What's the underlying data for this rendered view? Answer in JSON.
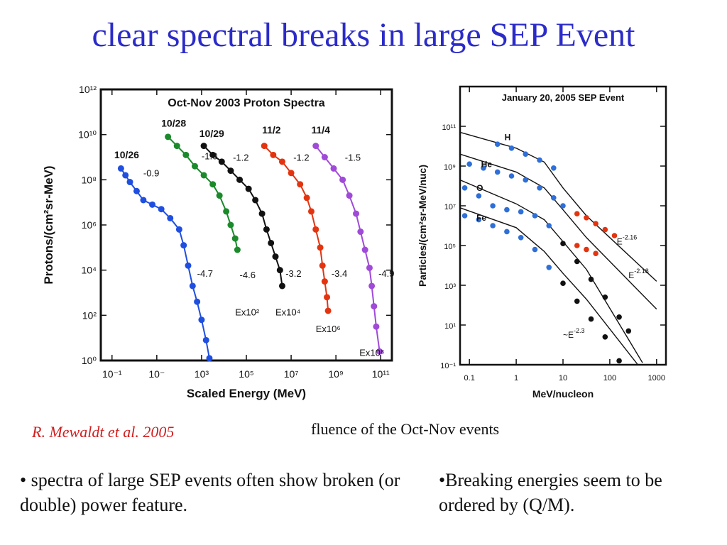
{
  "slide": {
    "title": "clear spectral breaks in large SEP Event",
    "citation": "R. Mewaldt et al. 2005",
    "figure_caption": "fluence of the Oct-Nov events",
    "bullets": [
      "• spectra of large SEP events often show broken (or double) power feature.",
      "•Breaking energies seem to be ordered by (Q/M)."
    ]
  },
  "chart_data": [
    {
      "type": "scatter",
      "title": "Oct-Nov 2003 Proton Spectra",
      "xlabel": "Scaled Energy (MeV)",
      "ylabel": "Protons/(cm²sr-MeV)",
      "x_scale": "log",
      "y_scale": "log",
      "xlim_exp": [
        -1.5,
        11.5
      ],
      "ylim_exp": [
        0,
        12
      ],
      "x_ticks": [
        {
          "e": -1,
          "label": "10⁻¹"
        },
        {
          "e": 1,
          "label": "10⁻"
        },
        {
          "e": 3,
          "label": "10³"
        },
        {
          "e": 5,
          "label": "10⁵"
        },
        {
          "e": 7,
          "label": "10⁷"
        },
        {
          "e": 9,
          "label": "10⁹"
        },
        {
          "e": 11,
          "label": "10¹¹"
        }
      ],
      "y_ticks": [
        {
          "e": 0,
          "label": "10⁰"
        },
        {
          "e": 2,
          "label": "10²"
        },
        {
          "e": 4,
          "label": "10⁴"
        },
        {
          "e": 6,
          "label": "10⁶"
        },
        {
          "e": 8,
          "label": "10⁸"
        },
        {
          "e": 10,
          "label": "10¹⁰"
        },
        {
          "e": 12,
          "label": "10¹²"
        }
      ],
      "series": [
        {
          "name": "10/26",
          "color": "#1f4fe0",
          "points": [
            [
              -0.6,
              8.5
            ],
            [
              -0.4,
              8.2
            ],
            [
              -0.2,
              7.9
            ],
            [
              0.1,
              7.5
            ],
            [
              0.4,
              7.1
            ],
            [
              0.8,
              6.9
            ],
            [
              1.2,
              6.7
            ],
            [
              1.6,
              6.3
            ],
            [
              2.0,
              5.8
            ],
            [
              2.2,
              5.1
            ],
            [
              2.4,
              4.2
            ],
            [
              2.6,
              3.3
            ],
            [
              2.8,
              2.6
            ],
            [
              3.0,
              1.8
            ],
            [
              3.2,
              0.9
            ],
            [
              3.35,
              0.1
            ]
          ],
          "annotations": [
            {
              "text": "-0.9",
              "x": 0.4,
              "y": 8.15
            },
            {
              "text": "-4.7",
              "x": 2.8,
              "y": 3.7
            }
          ]
        },
        {
          "name": "10/28",
          "color": "#1a8a2a",
          "points": [
            [
              1.5,
              9.9
            ],
            [
              1.9,
              9.5
            ],
            [
              2.3,
              9.1
            ],
            [
              2.7,
              8.6
            ],
            [
              3.1,
              8.2
            ],
            [
              3.5,
              7.8
            ],
            [
              3.8,
              7.3
            ],
            [
              4.1,
              6.6
            ],
            [
              4.3,
              6.0
            ],
            [
              4.5,
              5.4
            ],
            [
              4.6,
              4.9
            ]
          ],
          "annotations": [
            {
              "text": "-1.0",
              "x": 3.0,
              "y": 8.9
            },
            {
              "text": "-4.6",
              "x": 4.7,
              "y": 3.65
            },
            {
              "text": "Ex10²",
              "x": 4.5,
              "y": 2.0
            }
          ]
        },
        {
          "name": "10/29",
          "color": "#111111",
          "points": [
            [
              3.1,
              9.5
            ],
            [
              3.5,
              9.1
            ],
            [
              3.9,
              8.8
            ],
            [
              4.3,
              8.4
            ],
            [
              4.7,
              8.0
            ],
            [
              5.1,
              7.6
            ],
            [
              5.4,
              7.1
            ],
            [
              5.7,
              6.5
            ],
            [
              5.9,
              5.8
            ],
            [
              6.1,
              5.2
            ],
            [
              6.3,
              4.6
            ],
            [
              6.5,
              4.0
            ],
            [
              6.6,
              3.3
            ]
          ],
          "annotations": [
            {
              "text": "-1.2",
              "x": 4.4,
              "y": 8.85
            },
            {
              "text": "-3.2",
              "x": 6.75,
              "y": 3.7
            },
            {
              "text": "Ex10⁴",
              "x": 6.3,
              "y": 2.0
            }
          ]
        },
        {
          "name": "11/2",
          "color": "#e33410",
          "points": [
            [
              5.8,
              9.5
            ],
            [
              6.2,
              9.1
            ],
            [
              6.6,
              8.8
            ],
            [
              7.0,
              8.3
            ],
            [
              7.4,
              7.8
            ],
            [
              7.7,
              7.2
            ],
            [
              7.9,
              6.6
            ],
            [
              8.1,
              5.8
            ],
            [
              8.3,
              5.0
            ],
            [
              8.4,
              4.2
            ],
            [
              8.5,
              3.5
            ],
            [
              8.6,
              2.8
            ],
            [
              8.65,
              2.2
            ]
          ],
          "annotations": [
            {
              "text": "-1.2",
              "x": 7.1,
              "y": 8.85
            },
            {
              "text": "-3.4",
              "x": 8.8,
              "y": 3.7
            },
            {
              "text": "Ex10⁶",
              "x": 8.1,
              "y": 1.25
            }
          ]
        },
        {
          "name": "11/4",
          "color": "#a04ad8",
          "points": [
            [
              8.1,
              9.5
            ],
            [
              8.5,
              9.0
            ],
            [
              8.9,
              8.5
            ],
            [
              9.3,
              8.0
            ],
            [
              9.6,
              7.3
            ],
            [
              9.9,
              6.5
            ],
            [
              10.1,
              5.7
            ],
            [
              10.3,
              4.9
            ],
            [
              10.5,
              4.1
            ],
            [
              10.6,
              3.3
            ],
            [
              10.7,
              2.4
            ],
            [
              10.8,
              1.5
            ],
            [
              10.95,
              0.4
            ]
          ],
          "annotations": [
            {
              "text": "-1.5",
              "x": 9.4,
              "y": 8.85
            },
            {
              "text": "-4.9",
              "x": 10.9,
              "y": 3.7
            },
            {
              "text": "Ex10⁸",
              "x": 10.05,
              "y": 0.2
            }
          ]
        }
      ],
      "series_label_positions": [
        {
          "x": -0.9,
          "y": 8.95
        },
        {
          "x": 1.2,
          "y": 10.35
        },
        {
          "x": 2.9,
          "y": 9.9
        },
        {
          "x": 5.7,
          "y": 10.05
        },
        {
          "x": 7.9,
          "y": 10.05
        }
      ]
    },
    {
      "type": "scatter",
      "title": "January 20, 2005 SEP Event",
      "xlabel": "MeV/nucleon",
      "ylabel": "Particles/(cm²sr-MeV/nuc)",
      "x_scale": "log",
      "y_scale": "log",
      "xlim_exp": [
        -1.2,
        3.2
      ],
      "ylim_exp": [
        -3,
        11
      ],
      "x_ticks": [
        {
          "e": -1,
          "label": "0.1"
        },
        {
          "e": 0,
          "label": "1"
        },
        {
          "e": 1,
          "label": "10"
        },
        {
          "e": 2,
          "label": "100"
        },
        {
          "e": 3,
          "label": "1000"
        }
      ],
      "y_ticks": [
        {
          "e": -3,
          "label": "10⁻¹"
        },
        {
          "e": -1,
          "label": "10¹"
        },
        {
          "e": 1,
          "label": "10³"
        },
        {
          "e": 3,
          "label": "10⁵"
        },
        {
          "e": 5,
          "label": "10⁷"
        },
        {
          "e": 7,
          "label": "10⁹"
        },
        {
          "e": 9,
          "label": "10¹¹"
        }
      ],
      "series": [
        {
          "name": "H",
          "color": "#2e6fd8",
          "points": [
            [
              -0.4,
              8.1
            ],
            [
              -0.1,
              7.9
            ],
            [
              0.2,
              7.6
            ],
            [
              0.5,
              7.3
            ],
            [
              0.8,
              6.9
            ],
            [
              1.3,
              4.6
            ],
            [
              1.5,
              4.4
            ],
            [
              1.7,
              4.1
            ],
            [
              1.9,
              3.8
            ],
            [
              2.1,
              3.5
            ]
          ],
          "points_colors": [
            "#2e6fd8",
            "#2e6fd8",
            "#2e6fd8",
            "#2e6fd8",
            "#2e6fd8",
            "#e33410",
            "#e33410",
            "#e33410",
            "#e33410",
            "#e33410"
          ]
        },
        {
          "name": "He",
          "color": "#2e6fd8",
          "points": [
            [
              -1.0,
              7.1
            ],
            [
              -0.7,
              6.9
            ],
            [
              -0.4,
              6.7
            ],
            [
              -0.1,
              6.5
            ],
            [
              0.2,
              6.3
            ],
            [
              0.5,
              5.9
            ],
            [
              0.8,
              5.4
            ],
            [
              1.0,
              5.0
            ],
            [
              1.3,
              3.0
            ],
            [
              1.5,
              2.8
            ],
            [
              1.7,
              2.6
            ]
          ],
          "points_colors": [
            "#2e6fd8",
            "#2e6fd8",
            "#2e6fd8",
            "#2e6fd8",
            "#2e6fd8",
            "#2e6fd8",
            "#2e6fd8",
            "#2e6fd8",
            "#e33410",
            "#e33410",
            "#e33410"
          ]
        },
        {
          "name": "O",
          "color": "#2e6fd8",
          "points": [
            [
              -1.1,
              5.9
            ],
            [
              -0.8,
              5.5
            ],
            [
              -0.5,
              5.0
            ],
            [
              -0.2,
              4.8
            ],
            [
              0.1,
              4.7
            ],
            [
              0.4,
              4.5
            ],
            [
              0.7,
              4.0
            ],
            [
              1.0,
              3.1
            ],
            [
              1.3,
              2.2
            ],
            [
              1.6,
              1.3
            ],
            [
              1.9,
              0.4
            ],
            [
              2.2,
              -0.6
            ],
            [
              2.4,
              -1.3
            ]
          ],
          "points_colors": [
            "#2e6fd8",
            "#2e6fd8",
            "#2e6fd8",
            "#2e6fd8",
            "#2e6fd8",
            "#2e6fd8",
            "#2e6fd8",
            "#111111",
            "#111111",
            "#111111",
            "#111111",
            "#111111",
            "#111111"
          ]
        },
        {
          "name": "Fe",
          "color": "#2e6fd8",
          "points": [
            [
              -1.1,
              4.5
            ],
            [
              -0.8,
              4.3
            ],
            [
              -0.5,
              4.0
            ],
            [
              -0.2,
              3.7
            ],
            [
              0.1,
              3.4
            ],
            [
              0.4,
              2.8
            ],
            [
              0.7,
              1.9
            ],
            [
              1.0,
              1.1
            ],
            [
              1.3,
              0.2
            ],
            [
              1.6,
              -0.7
            ],
            [
              1.9,
              -1.6
            ],
            [
              2.2,
              -2.8
            ]
          ],
          "points_colors": [
            "#2e6fd8",
            "#2e6fd8",
            "#2e6fd8",
            "#2e6fd8",
            "#2e6fd8",
            "#2e6fd8",
            "#2e6fd8",
            "#111111",
            "#111111",
            "#111111",
            "#111111",
            "#111111"
          ]
        }
      ],
      "fit_lines": [
        [
          [
            -1.2,
            8.7
          ],
          [
            0.0,
            7.9
          ],
          [
            0.6,
            7.2
          ],
          [
            1.0,
            5.9
          ],
          [
            1.5,
            4.5
          ],
          [
            3.0,
            1.2
          ]
        ],
        [
          [
            -1.2,
            7.6
          ],
          [
            0.0,
            6.7
          ],
          [
            0.6,
            5.9
          ],
          [
            1.0,
            4.8
          ],
          [
            1.5,
            3.4
          ],
          [
            3.0,
            -0.2
          ]
        ],
        [
          [
            -1.2,
            6.3
          ],
          [
            0.0,
            5.1
          ],
          [
            0.6,
            4.3
          ],
          [
            1.0,
            3.2
          ],
          [
            1.5,
            1.8
          ],
          [
            2.7,
            -2.9
          ]
        ],
        [
          [
            -1.2,
            4.9
          ],
          [
            0.0,
            3.9
          ],
          [
            0.6,
            2.7
          ],
          [
            1.0,
            1.6
          ],
          [
            1.5,
            0.3
          ],
          [
            2.6,
            -3.0
          ]
        ]
      ],
      "series_label_positions": [
        {
          "x": -0.25,
          "y": 8.3
        },
        {
          "x": -0.75,
          "y": 6.95
        },
        {
          "x": -0.85,
          "y": 5.75
        },
        {
          "x": -0.85,
          "y": 4.25
        }
      ],
      "annotations": [
        {
          "text": "E",
          "sup": "-2.16",
          "x": 2.15,
          "y": 3.05
        },
        {
          "text": "E",
          "sup": "-2.18",
          "x": 2.4,
          "y": 1.35
        },
        {
          "text": "~E",
          "sup": "-2.3",
          "x": 1.0,
          "y": -1.65
        }
      ]
    }
  ]
}
